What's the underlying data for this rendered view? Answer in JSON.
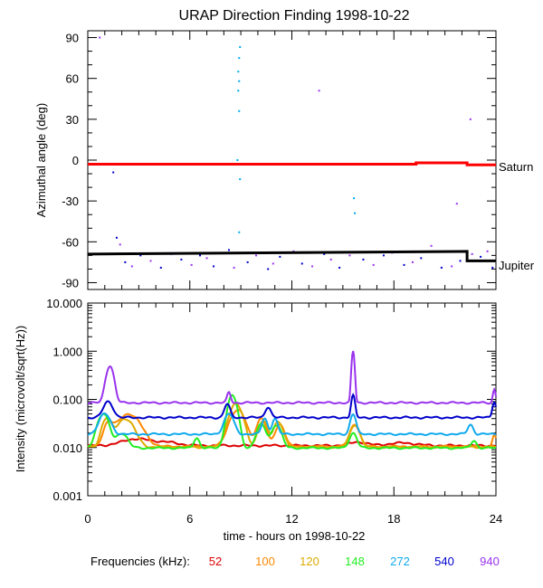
{
  "figure": {
    "title": "URAP Direction Finding  1998-10-22",
    "xlabel": "time - hours on 1998-10-22",
    "legend_label": "Frequencies (kHz):"
  },
  "chart_data": [
    {
      "type": "scatter",
      "panel": "azimuth",
      "ylabel": "Azimuthal angle (deg)",
      "xlim": [
        0,
        24
      ],
      "ylim": [
        -95,
        95
      ],
      "yticks": [
        90,
        60,
        30,
        0,
        -30,
        -60,
        -90
      ],
      "ytick_labels": [
        "90",
        "60",
        "30",
        "0",
        "-30",
        "-60",
        "-90"
      ],
      "annotations": [
        "Saturn",
        "Jupiter"
      ],
      "reference_lines": [
        {
          "name": "Saturn",
          "color": "#ff0000",
          "points": [
            [
              0,
              -3
            ],
            [
              19.3,
              -3
            ],
            [
              19.3,
              -2
            ],
            [
              22.3,
              -2
            ],
            [
              22.3,
              -3.5
            ],
            [
              24,
              -3.5
            ]
          ]
        },
        {
          "name": "Jupiter",
          "color": "#000000",
          "points": [
            [
              0,
              -69
            ],
            [
              22.3,
              -67
            ],
            [
              22.3,
              -74
            ],
            [
              24,
              -74
            ]
          ]
        }
      ],
      "scatter_series": [
        {
          "color": "#00aaee",
          "points": [
            [
              8.95,
              83
            ],
            [
              8.9,
              75
            ],
            [
              8.85,
              65
            ],
            [
              8.9,
              58
            ],
            [
              8.85,
              51
            ],
            [
              8.9,
              36
            ],
            [
              8.8,
              0
            ],
            [
              8.95,
              -14
            ],
            [
              8.9,
              -53
            ],
            [
              15.65,
              -28
            ],
            [
              15.7,
              -39
            ]
          ]
        },
        {
          "color": "#0000cc",
          "points": [
            [
              1.5,
              -9
            ],
            [
              1.7,
              -57
            ],
            [
              2.2,
              -75
            ],
            [
              3.1,
              -70
            ],
            [
              4.3,
              -79
            ],
            [
              5.5,
              -73
            ],
            [
              6.6,
              -70
            ],
            [
              7.4,
              -78
            ],
            [
              8.3,
              -66
            ],
            [
              9.4,
              -75
            ],
            [
              10.6,
              -80
            ],
            [
              11.3,
              -71
            ],
            [
              12.6,
              -76
            ],
            [
              13.9,
              -69
            ],
            [
              14.8,
              -79
            ],
            [
              16.2,
              -73
            ],
            [
              17.4,
              -70
            ],
            [
              18.6,
              -77
            ],
            [
              19.6,
              -72
            ],
            [
              20.8,
              -79
            ],
            [
              21.9,
              -74
            ],
            [
              23.1,
              -71
            ],
            [
              23.8,
              -79
            ]
          ]
        },
        {
          "color": "#9933ee",
          "points": [
            [
              0.7,
              90
            ],
            [
              13.6,
              51
            ],
            [
              22.5,
              30
            ],
            [
              21.7,
              -32
            ],
            [
              1.9,
              -62
            ],
            [
              2.6,
              -78
            ],
            [
              3.7,
              -74
            ],
            [
              4.9,
              -69
            ],
            [
              6.1,
              -77
            ],
            [
              7.0,
              -72
            ],
            [
              8.6,
              -79
            ],
            [
              9.9,
              -70
            ],
            [
              10.9,
              -76
            ],
            [
              12.1,
              -67
            ],
            [
              13.2,
              -78
            ],
            [
              14.3,
              -73
            ],
            [
              15.4,
              -70
            ],
            [
              16.8,
              -77
            ],
            [
              17.9,
              -68
            ],
            [
              19.1,
              -75
            ],
            [
              20.2,
              -63
            ],
            [
              21.4,
              -78
            ],
            [
              22.6,
              -69
            ],
            [
              23.5,
              -67
            ]
          ]
        }
      ]
    },
    {
      "type": "line",
      "panel": "intensity",
      "ylabel": "Intensity (microvolt/sqrt(Hz))",
      "yscale": "log",
      "xlim": [
        0,
        24
      ],
      "ylim": [
        0.001,
        10
      ],
      "yticks": [
        10,
        1,
        0.1,
        0.01,
        0.001
      ],
      "ytick_labels": [
        "10.000",
        "1.000",
        "0.100",
        "0.010",
        "0.001"
      ],
      "xticks": [
        0,
        6,
        12,
        18,
        24
      ],
      "xtick_labels": [
        "0",
        "6",
        "12",
        "18",
        "24"
      ],
      "series": [
        {
          "name": "52",
          "color": "#dd0000",
          "base": 0.011,
          "bumps": [
            [
              2.8,
              0.015,
              1.5
            ],
            [
              4.5,
              0.013,
              1.5
            ],
            [
              15.9,
              0.013,
              1.0
            ],
            [
              18.5,
              0.0125,
              1.5
            ]
          ]
        },
        {
          "name": "100",
          "color": "#ff8800",
          "base": 0.0105,
          "bumps": [
            [
              1.2,
              0.03,
              0.5
            ],
            [
              2.4,
              0.05,
              1.2
            ],
            [
              8.8,
              0.06,
              0.8
            ],
            [
              10.2,
              0.04,
              0.5
            ],
            [
              11.3,
              0.03,
              0.5
            ],
            [
              15.7,
              0.03,
              0.5
            ],
            [
              23.9,
              0.018,
              0.2
            ]
          ]
        },
        {
          "name": "120",
          "color": "#ddaa00",
          "base": 0.0102,
          "bumps": [
            [
              1.1,
              0.04,
              0.5
            ],
            [
              2.2,
              0.04,
              0.9
            ],
            [
              8.7,
              0.08,
              0.7
            ],
            [
              10.3,
              0.035,
              0.5
            ],
            [
              11.2,
              0.035,
              0.5
            ],
            [
              15.7,
              0.03,
              0.5
            ]
          ]
        },
        {
          "name": "148",
          "color": "#22ee22",
          "base": 0.0098,
          "bumps": [
            [
              0.9,
              0.05,
              0.6
            ],
            [
              2.0,
              0.02,
              0.6
            ],
            [
              6.4,
              0.016,
              0.3
            ],
            [
              8.5,
              0.12,
              0.5
            ],
            [
              10.2,
              0.03,
              0.5
            ],
            [
              11.1,
              0.03,
              0.5
            ],
            [
              15.6,
              0.02,
              0.4
            ],
            [
              22.7,
              0.014,
              0.3
            ]
          ]
        },
        {
          "name": "272",
          "color": "#11aaee",
          "base": 0.019,
          "bumps": [
            [
              1.0,
              0.05,
              0.6
            ],
            [
              8.3,
              0.05,
              0.5
            ],
            [
              10.4,
              0.04,
              0.3
            ],
            [
              11.0,
              0.04,
              0.3
            ],
            [
              15.6,
              0.05,
              0.3
            ],
            [
              22.5,
              0.03,
              0.3
            ]
          ]
        },
        {
          "name": "540",
          "color": "#0000cc",
          "base": 0.042,
          "bumps": [
            [
              1.2,
              0.09,
              0.5
            ],
            [
              8.2,
              0.08,
              0.3
            ],
            [
              10.6,
              0.07,
              0.3
            ],
            [
              15.6,
              0.12,
              0.2
            ],
            [
              23.9,
              0.09,
              0.2
            ]
          ]
        },
        {
          "name": "940",
          "color": "#9933ee",
          "base": 0.085,
          "bumps": [
            [
              1.3,
              0.5,
              0.4
            ],
            [
              8.3,
              0.14,
              0.2
            ],
            [
              15.6,
              1.0,
              0.15
            ],
            [
              23.9,
              0.16,
              0.15
            ]
          ]
        }
      ]
    }
  ]
}
